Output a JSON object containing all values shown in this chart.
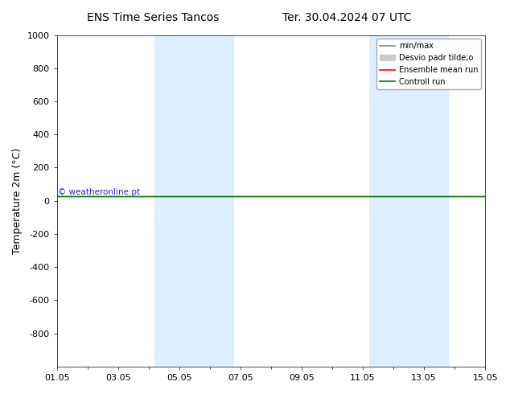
{
  "title_left": "ENS Time Series Tancos",
  "title_right": "Ter. 30.04.2024 07 UTC",
  "ylabel": "Temperature 2m (°C)",
  "watermark": "© weatheronline.pt",
  "ylim_top": -1000,
  "ylim_bottom": 1000,
  "yticks": [
    -800,
    -600,
    -400,
    -200,
    0,
    200,
    400,
    600,
    800,
    1000
  ],
  "xtick_labels": [
    "01.05",
    "03.05",
    "05.05",
    "07.05",
    "09.05",
    "11.05",
    "13.05",
    "15.05"
  ],
  "xtick_positions": [
    0,
    2,
    4,
    6,
    8,
    10,
    12,
    14
  ],
  "shade_bands": [
    {
      "x_start": 3.2,
      "x_end": 4.2
    },
    {
      "x_start": 4.2,
      "x_end": 5.8
    },
    {
      "x_start": 10.2,
      "x_end": 11.2
    },
    {
      "x_start": 11.2,
      "x_end": 12.8
    }
  ],
  "shade_color": "#ddeeff",
  "control_run_value": 30.0,
  "ensemble_mean_value": 30.0,
  "control_run_color": "#008000",
  "ensemble_mean_color": "#ff0000",
  "minmax_color": "#888888",
  "std_color": "#cccccc",
  "legend_entries": [
    "min/max",
    "Desvio padr tilde;o",
    "Ensemble mean run",
    "Controll run"
  ],
  "legend_colors": [
    "#888888",
    "#cccccc",
    "#ff0000",
    "#008000"
  ],
  "background_color": "#ffffff",
  "plot_bg_color": "#ffffff",
  "title_fontsize": 10,
  "label_fontsize": 9,
  "tick_fontsize": 8
}
